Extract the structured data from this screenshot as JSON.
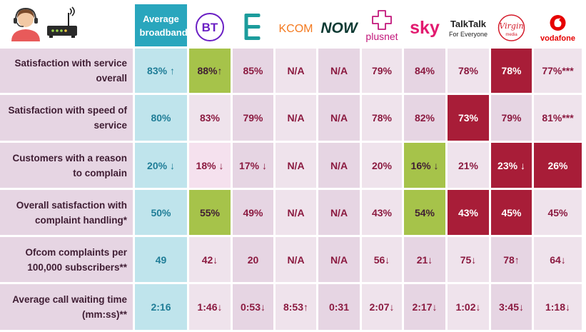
{
  "header": {
    "avg_label": "Average broadband",
    "providers": [
      {
        "key": "bt",
        "name": "BT",
        "color": "#6a1fc4"
      },
      {
        "key": "ee",
        "name": "EE",
        "color": "#1c9c9c"
      },
      {
        "key": "kcom",
        "name": "KCOM",
        "color": "#f47a20"
      },
      {
        "key": "now",
        "name": "NOW",
        "color": "#0e3a33"
      },
      {
        "key": "plusnet",
        "name": "plusnet",
        "color": "#c2187b"
      },
      {
        "key": "sky",
        "name": "sky",
        "color": "#e21a6f"
      },
      {
        "key": "talktalk",
        "name": "TalkTalk",
        "tagline": "For Everyone",
        "color": "#222222"
      },
      {
        "key": "virgin",
        "name": "Virgin",
        "sub": "media",
        "color": "#d41c2b"
      },
      {
        "key": "vodafone",
        "name": "vodafone",
        "color": "#e60000"
      }
    ]
  },
  "colors": {
    "label_bg": "#e6d5e3",
    "avg_bg": "#bfe4ec",
    "avg_text": "#1f7d97",
    "normal": "#e6d5e3",
    "normal_alt": "#efe3ec",
    "normal_text": "#8b1a40",
    "better": "#a6c34a",
    "worse": "#a81d38",
    "light": "#f5e1ee",
    "dark_text": "#3f1d33"
  },
  "rows": [
    {
      "label": "Satisfaction with service overall",
      "avg": "83% ↑",
      "cells": [
        {
          "v": "88%↑",
          "s": "better"
        },
        {
          "v": "85%",
          "s": "normal"
        },
        {
          "v": "N/A",
          "s": "normal"
        },
        {
          "v": "N/A",
          "s": "normal"
        },
        {
          "v": "79%",
          "s": "normal"
        },
        {
          "v": "84%",
          "s": "normal"
        },
        {
          "v": "78%",
          "s": "normal"
        },
        {
          "v": "78%",
          "s": "worse"
        },
        {
          "v": "77%***",
          "s": "normal"
        }
      ]
    },
    {
      "label": "Satisfaction with speed of service",
      "avg": "80%",
      "cells": [
        {
          "v": "83%",
          "s": "normal"
        },
        {
          "v": "79%",
          "s": "normal"
        },
        {
          "v": "N/A",
          "s": "normal"
        },
        {
          "v": "N/A",
          "s": "normal"
        },
        {
          "v": "78%",
          "s": "normal"
        },
        {
          "v": "82%",
          "s": "normal"
        },
        {
          "v": "73%",
          "s": "worse"
        },
        {
          "v": "79%",
          "s": "normal"
        },
        {
          "v": "81%***",
          "s": "normal"
        }
      ]
    },
    {
      "label": "Customers with a reason to complain",
      "avg": "20% ↓",
      "cells": [
        {
          "v": "18% ↓",
          "s": "light"
        },
        {
          "v": "17% ↓",
          "s": "normal"
        },
        {
          "v": "N/A",
          "s": "normal"
        },
        {
          "v": "N/A",
          "s": "normal"
        },
        {
          "v": "20%",
          "s": "normal"
        },
        {
          "v": "16% ↓",
          "s": "better"
        },
        {
          "v": "21%",
          "s": "normal"
        },
        {
          "v": "23% ↓",
          "s": "worse"
        },
        {
          "v": "26%",
          "s": "worse"
        }
      ]
    },
    {
      "label": "Overall satisfaction with complaint handling*",
      "avg": "50%",
      "cells": [
        {
          "v": "55%",
          "s": "better"
        },
        {
          "v": "49%",
          "s": "normal"
        },
        {
          "v": "N/A",
          "s": "normal"
        },
        {
          "v": "N/A",
          "s": "normal"
        },
        {
          "v": "43%",
          "s": "normal"
        },
        {
          "v": "54%",
          "s": "better"
        },
        {
          "v": "43%",
          "s": "worse"
        },
        {
          "v": "45%",
          "s": "worse"
        },
        {
          "v": "45%",
          "s": "normal"
        }
      ]
    },
    {
      "label": "Ofcom complaints per 100,000 subscribers**",
      "avg": "49",
      "cells": [
        {
          "v": "42↓",
          "s": "normal"
        },
        {
          "v": "20",
          "s": "normal"
        },
        {
          "v": "N/A",
          "s": "normal"
        },
        {
          "v": "N/A",
          "s": "normal"
        },
        {
          "v": "56↓",
          "s": "normal"
        },
        {
          "v": "21↓",
          "s": "normal"
        },
        {
          "v": "75↓",
          "s": "normal"
        },
        {
          "v": "78↑",
          "s": "normal"
        },
        {
          "v": "64↓",
          "s": "normal"
        }
      ]
    },
    {
      "label": "Average call waiting time (mm:ss)**",
      "avg": "2:16",
      "cells": [
        {
          "v": "1:46↓",
          "s": "normal"
        },
        {
          "v": "0:53↓",
          "s": "normal"
        },
        {
          "v": "8:53↑",
          "s": "normal"
        },
        {
          "v": "0:31",
          "s": "normal"
        },
        {
          "v": "2:07↓",
          "s": "normal"
        },
        {
          "v": "2:17↓",
          "s": "normal"
        },
        {
          "v": "1:02↓",
          "s": "normal"
        },
        {
          "v": "3:45↓",
          "s": "normal"
        },
        {
          "v": "1:18↓",
          "s": "normal"
        }
      ]
    }
  ]
}
